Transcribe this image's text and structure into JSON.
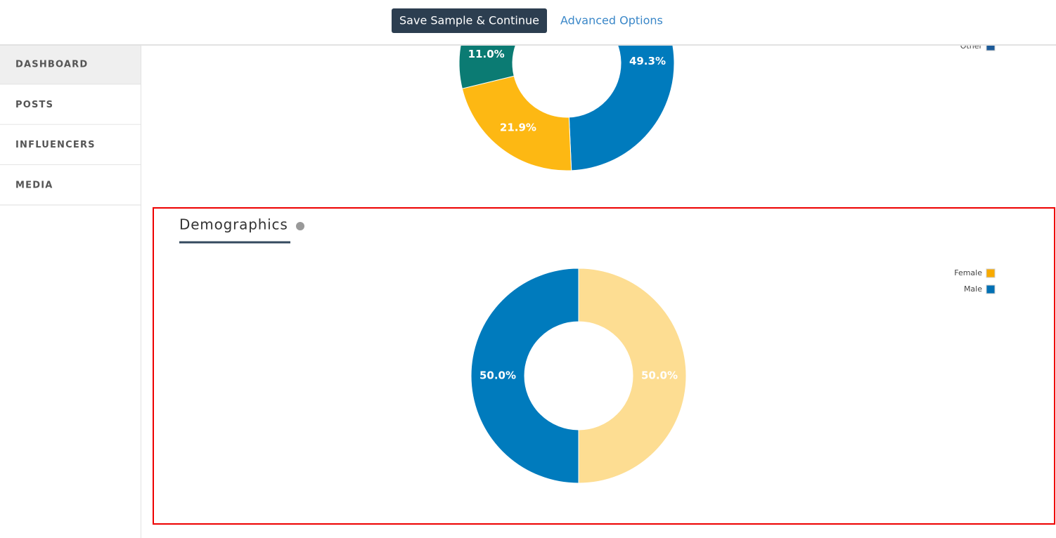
{
  "header": {
    "primary_button": "Save Sample & Continue",
    "link": "Advanced Options"
  },
  "nav": {
    "items": [
      "DASHBOARD",
      "POSTS",
      "INFLUENCERS",
      "MEDIA"
    ],
    "active": 0
  },
  "chart_data": [
    {
      "type": "donut",
      "categories": [
        null,
        null,
        null
      ],
      "values": [
        49.3,
        21.9,
        11.0
      ],
      "value_labels": [
        "49.3%",
        "21.9%",
        "11.0%"
      ],
      "colors": [
        "#007bbd",
        "#fdb813",
        "#0b7b73"
      ],
      "legend": [
        {
          "name": "Other",
          "color": "#1c5a98"
        }
      ]
    },
    {
      "type": "donut",
      "title": "Demographics",
      "categories": [
        "Female",
        "Male"
      ],
      "values": [
        50.0,
        50.0
      ],
      "value_labels": [
        "50.0%",
        "50.0%"
      ],
      "colors": [
        "#fddd92",
        "#007bbd"
      ],
      "legend_colors": [
        "#f8aa00",
        "#0070b4"
      ]
    }
  ]
}
